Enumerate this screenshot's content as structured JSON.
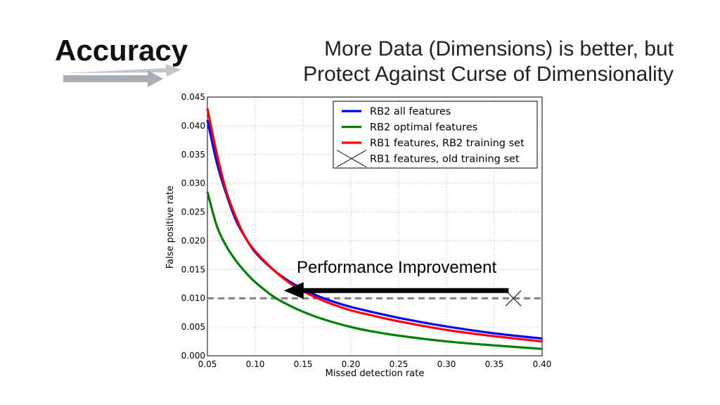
{
  "slide": {
    "title": "Accuracy",
    "subtitle_lines": [
      "More Data (Dimensions) is better, but",
      "Protect Against Curse of Dimensionality"
    ],
    "colors": {
      "title_arrow": "#9aa0a8"
    }
  },
  "chart_data": {
    "type": "line",
    "xlabel": "Missed detection rate",
    "ylabel": "False positive rate",
    "xlim": [
      0.05,
      0.4
    ],
    "ylim": [
      0.0,
      0.045
    ],
    "x_ticks": [
      "0.05",
      "0.10",
      "0.15",
      "0.20",
      "0.25",
      "0.30",
      "0.35",
      "0.40"
    ],
    "y_ticks": [
      "0.000",
      "0.005",
      "0.010",
      "0.015",
      "0.020",
      "0.025",
      "0.030",
      "0.035",
      "0.040",
      "0.045"
    ],
    "grid": true,
    "legend_position": "top-right",
    "series": [
      {
        "name": "RB2 all features",
        "color": "#0000ff",
        "x": [
          0.05,
          0.06,
          0.07,
          0.08,
          0.09,
          0.1,
          0.12,
          0.14,
          0.16,
          0.18,
          0.2,
          0.22,
          0.25,
          0.3,
          0.35,
          0.4
        ],
        "y": [
          0.041,
          0.0335,
          0.028,
          0.0235,
          0.0205,
          0.018,
          0.0148,
          0.0125,
          0.0108,
          0.0095,
          0.0085,
          0.0077,
          0.0066,
          0.0051,
          0.0039,
          0.003
        ]
      },
      {
        "name": "RB2 optimal features",
        "color": "#008000",
        "x": [
          0.05,
          0.06,
          0.07,
          0.08,
          0.09,
          0.1,
          0.12,
          0.14,
          0.16,
          0.18,
          0.2,
          0.22,
          0.25,
          0.3,
          0.35,
          0.4
        ],
        "y": [
          0.0285,
          0.0225,
          0.019,
          0.0165,
          0.0145,
          0.0128,
          0.0102,
          0.0084,
          0.007,
          0.0059,
          0.005,
          0.0043,
          0.0035,
          0.0025,
          0.0018,
          0.0012
        ]
      },
      {
        "name": "RB1 features, RB2 training set",
        "color": "#ff0000",
        "x": [
          0.05,
          0.06,
          0.07,
          0.08,
          0.09,
          0.1,
          0.12,
          0.14,
          0.16,
          0.18,
          0.2,
          0.22,
          0.25,
          0.3,
          0.35,
          0.4
        ],
        "y": [
          0.043,
          0.035,
          0.0285,
          0.024,
          0.0205,
          0.0182,
          0.0148,
          0.0122,
          0.0104,
          0.009,
          0.0079,
          0.0071,
          0.006,
          0.0045,
          0.0034,
          0.0025
        ]
      }
    ],
    "markers": [
      {
        "name": "RB1 features, old training set",
        "symbol": "x",
        "x": 0.37,
        "y": 0.01
      }
    ],
    "reference_line": {
      "y": 0.01,
      "style": "dashed",
      "color": "#808080"
    },
    "annotation": {
      "text": "Performance Improvement",
      "arrow_from": {
        "x": 0.365,
        "y": 0.0111
      },
      "arrow_to": {
        "x": 0.13,
        "y": 0.0111
      }
    }
  }
}
